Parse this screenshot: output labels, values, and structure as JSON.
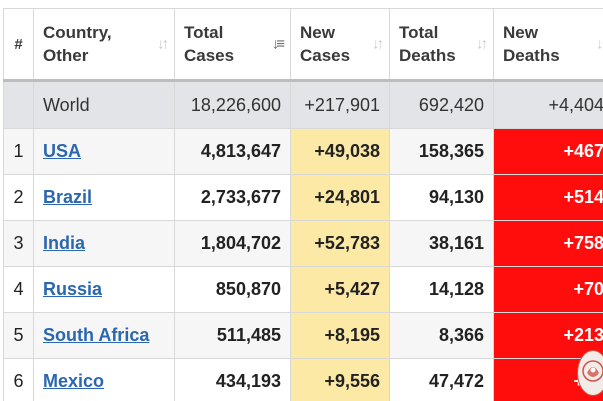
{
  "table": {
    "headers": {
      "index": "#",
      "country": [
        "Country,",
        "Other"
      ],
      "total_cases": [
        "Total",
        "Cases"
      ],
      "new_cases": [
        "New",
        "Cases"
      ],
      "total_deaths": [
        "Total",
        "Deaths"
      ],
      "new_deaths": [
        "New",
        "Deaths"
      ]
    },
    "sort_icons": {
      "country": "sort-icon",
      "total_cases": "sort-descending-icon",
      "new_cases": "sort-icon",
      "total_deaths": "sort-icon",
      "new_deaths": "sort-icon"
    },
    "world": {
      "name": "World",
      "total_cases": "18,226,600",
      "new_cases": "+217,901",
      "total_deaths": "692,420",
      "new_deaths": "+4,404"
    },
    "rows": [
      {
        "index": "1",
        "country": "USA",
        "total_cases": "4,813,647",
        "new_cases": "+49,038",
        "total_deaths": "158,365",
        "new_deaths": "+467"
      },
      {
        "index": "2",
        "country": "Brazil",
        "total_cases": "2,733,677",
        "new_cases": "+24,801",
        "total_deaths": "94,130",
        "new_deaths": "+514"
      },
      {
        "index": "3",
        "country": "India",
        "total_cases": "1,804,702",
        "new_cases": "+52,783",
        "total_deaths": "38,161",
        "new_deaths": "+758"
      },
      {
        "index": "4",
        "country": "Russia",
        "total_cases": "850,870",
        "new_cases": "+5,427",
        "total_deaths": "14,128",
        "new_deaths": "+70"
      },
      {
        "index": "5",
        "country": "South Africa",
        "total_cases": "511,485",
        "new_cases": "+8,195",
        "total_deaths": "8,366",
        "new_deaths": "+213"
      },
      {
        "index": "6",
        "country": "Mexico",
        "total_cases": "434,193",
        "new_cases": "+9,556",
        "total_deaths": "47,472",
        "new_deaths": "+78"
      }
    ]
  },
  "colors": {
    "new_cases_highlight": "#fde9a6",
    "new_deaths_highlight": "#ff0d0d",
    "link": "#2a67b0",
    "world_row": "#e2e4e7"
  },
  "overlay": {
    "logo_icon": "channel-logo-icon"
  }
}
